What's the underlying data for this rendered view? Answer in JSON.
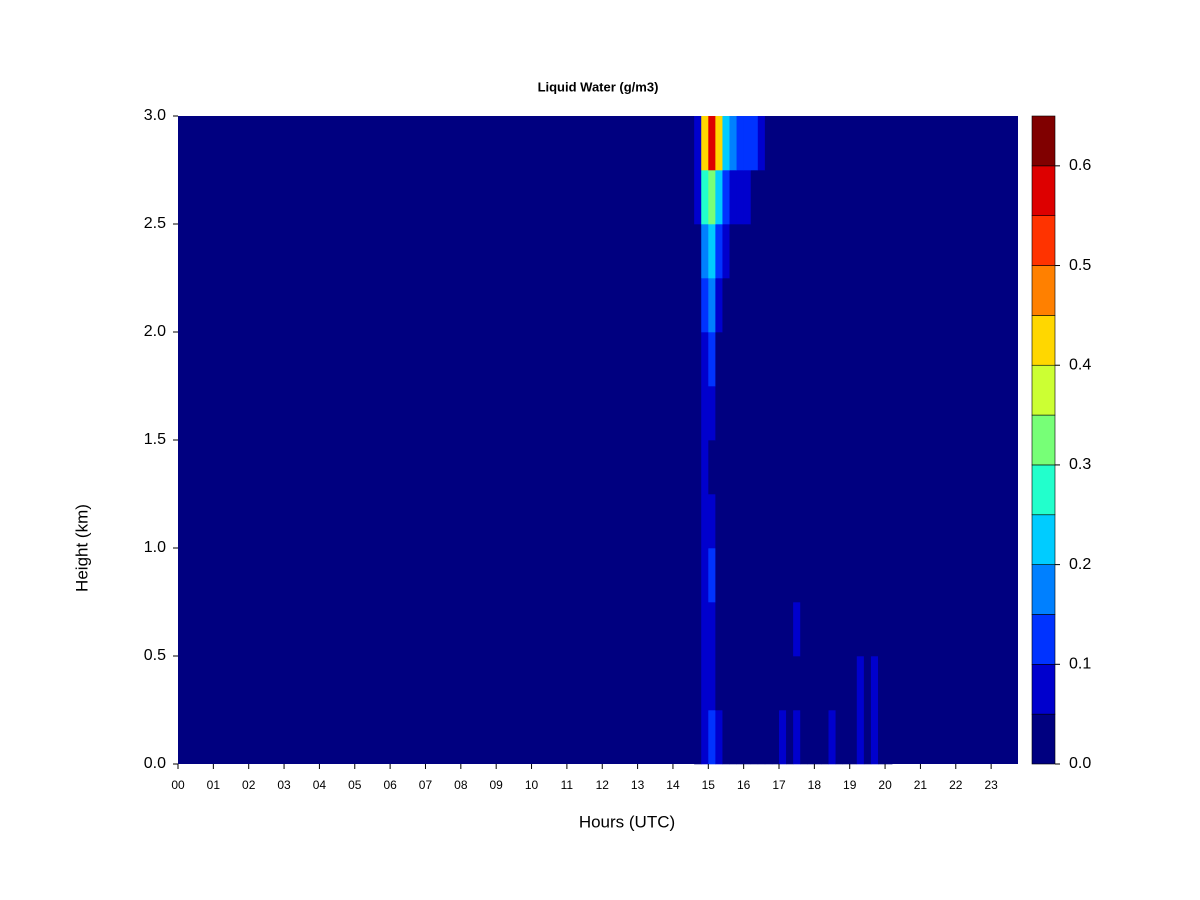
{
  "chart_data": {
    "type": "heatmap",
    "title": "Liquid Water (g/m3)",
    "x_label": "Hours (UTC)",
    "y_label": "Height (km)",
    "xlim": [
      0,
      23.76
    ],
    "ylim": [
      0,
      3
    ],
    "xticks": [
      {
        "value": 0,
        "label": "00"
      },
      {
        "value": 1,
        "label": "01"
      },
      {
        "value": 2,
        "label": "02"
      },
      {
        "value": 3,
        "label": "03"
      },
      {
        "value": 4,
        "label": "04"
      },
      {
        "value": 5,
        "label": "05"
      },
      {
        "value": 6,
        "label": "06"
      },
      {
        "value": 7,
        "label": "07"
      },
      {
        "value": 8,
        "label": "08"
      },
      {
        "value": 9,
        "label": "09"
      },
      {
        "value": 10,
        "label": "10"
      },
      {
        "value": 11,
        "label": "11"
      },
      {
        "value": 12,
        "label": "12"
      },
      {
        "value": 13,
        "label": "13"
      },
      {
        "value": 14,
        "label": "14"
      },
      {
        "value": 15,
        "label": "15"
      },
      {
        "value": 16,
        "label": "16"
      },
      {
        "value": 17,
        "label": "17"
      },
      {
        "value": 18,
        "label": "18"
      },
      {
        "value": 19,
        "label": "19"
      },
      {
        "value": 20,
        "label": "20"
      },
      {
        "value": 21,
        "label": "21"
      },
      {
        "value": 22,
        "label": "22"
      },
      {
        "value": 23,
        "label": "23"
      }
    ],
    "yticks": [
      {
        "value": 0,
        "label": "0.0"
      },
      0.5,
      {
        "value": 1,
        "label": "1.0"
      },
      1.5,
      {
        "value": 2,
        "label": "2.0"
      },
      2.5,
      {
        "value": 3,
        "label": "3.0"
      }
    ],
    "levels": [
      0,
      0.05,
      0.1,
      0.15,
      0.2,
      0.25,
      0.3,
      0.35,
      0.4,
      0.45,
      0.5,
      0.55,
      0.6,
      0.65
    ],
    "colors": [
      "#000080",
      "#0000cd",
      "#0033ff",
      "#0080ff",
      "#00ccff",
      "#22ffcc",
      "#77ff77",
      "#ccff33",
      "#ffd700",
      "#ff8000",
      "#ff3300",
      "#dd0000",
      "#800000"
    ],
    "colorbar_ticks": [
      {
        "value": 0,
        "label": "0.0"
      },
      0.1,
      0.2,
      0.3,
      0.4,
      0.5,
      0.6
    ],
    "x_bins": [
      14.6,
      14.8,
      15.0,
      15.2,
      15.4,
      15.6,
      15.8,
      16.0,
      16.2,
      16.4,
      16.6,
      16.8,
      17.0,
      17.2,
      17.4,
      17.6,
      17.8,
      18.0,
      18.2,
      18.4,
      18.6,
      18.8,
      19.0,
      19.2,
      19.4,
      19.6,
      19.8,
      20.0,
      20.2
    ],
    "y_bins": [
      0,
      0.25,
      0.5,
      0.75,
      1,
      1.25,
      1.5,
      1.75,
      2,
      2.25,
      2.5,
      2.75,
      3
    ],
    "z": [
      [
        0.02,
        0.08,
        0.12,
        0.06,
        0.02,
        0,
        0,
        0,
        0,
        0,
        0,
        0,
        0.05,
        0.03,
        0.05,
        0,
        0,
        0,
        0,
        0.05,
        0.02,
        0,
        0,
        0.06,
        0.03,
        0.06,
        0.03,
        0
      ],
      [
        0.02,
        0.07,
        0.08,
        0.04,
        0.01,
        0,
        0,
        0,
        0,
        0,
        0,
        0,
        0.04,
        0.03,
        0.04,
        0,
        0,
        0,
        0,
        0.02,
        0,
        0,
        0,
        0.07,
        0.02,
        0.05,
        0.02,
        0
      ],
      [
        0.01,
        0.06,
        0.09,
        0.03,
        0,
        0,
        0,
        0,
        0,
        0,
        0,
        0,
        0.03,
        0.02,
        0.05,
        0,
        0,
        0,
        0,
        0,
        0,
        0,
        0,
        0.03,
        0.01,
        0.04,
        0,
        0
      ],
      [
        0.01,
        0.07,
        0.12,
        0.03,
        0,
        0,
        0,
        0,
        0,
        0,
        0,
        0,
        0.03,
        0.02,
        0.03,
        0,
        0,
        0,
        0,
        0,
        0,
        0,
        0,
        0.01,
        0,
        0.04,
        0,
        0
      ],
      [
        0,
        0.06,
        0.07,
        0.02,
        0,
        0,
        0,
        0,
        0,
        0,
        0,
        0,
        0.02,
        0.01,
        0.01,
        0,
        0,
        0,
        0,
        0,
        0,
        0,
        0,
        0,
        0,
        0.02,
        0,
        0
      ],
      [
        0,
        0.05,
        0.04,
        0.01,
        0,
        0,
        0,
        0,
        0,
        0,
        0,
        0,
        0.02,
        0,
        0,
        0,
        0,
        0,
        0,
        0,
        0,
        0,
        0,
        0,
        0,
        0,
        0,
        0
      ],
      [
        0,
        0.05,
        0.06,
        0.02,
        0,
        0,
        0,
        0,
        0,
        0,
        0,
        0,
        0.01,
        0,
        0,
        0,
        0,
        0,
        0,
        0,
        0,
        0,
        0,
        0,
        0,
        0,
        0,
        0
      ],
      [
        0,
        0.07,
        0.12,
        0.04,
        0,
        0,
        0,
        0,
        0,
        0,
        0,
        0,
        0.01,
        0,
        0,
        0,
        0,
        0,
        0,
        0,
        0,
        0,
        0,
        0,
        0,
        0,
        0,
        0
      ],
      [
        0.01,
        0.1,
        0.15,
        0.07,
        0.02,
        0,
        0,
        0,
        0,
        0,
        0,
        0,
        0.02,
        0,
        0,
        0,
        0,
        0,
        0,
        0,
        0,
        0,
        0,
        0,
        0,
        0,
        0,
        0
      ],
      [
        0.03,
        0.16,
        0.2,
        0.12,
        0.06,
        0.03,
        0.02,
        0.01,
        0,
        0,
        0,
        0,
        0.03,
        0,
        0,
        0,
        0,
        0,
        0,
        0,
        0,
        0,
        0,
        0,
        0,
        0,
        0,
        0
      ],
      [
        0.05,
        0.28,
        0.3,
        0.22,
        0.12,
        0.08,
        0.06,
        0.05,
        0.02,
        0.01,
        0,
        0,
        0.03,
        0.02,
        0.02,
        0,
        0,
        0,
        0,
        0,
        0,
        0,
        0,
        0,
        0,
        0,
        0,
        0
      ],
      [
        0.08,
        0.4,
        0.58,
        0.4,
        0.22,
        0.16,
        0.14,
        0.12,
        0.1,
        0.06,
        0.02,
        0,
        0.04,
        0.02,
        0.03,
        0,
        0,
        0,
        0,
        0,
        0,
        0,
        0,
        0,
        0,
        0,
        0,
        0
      ]
    ]
  }
}
